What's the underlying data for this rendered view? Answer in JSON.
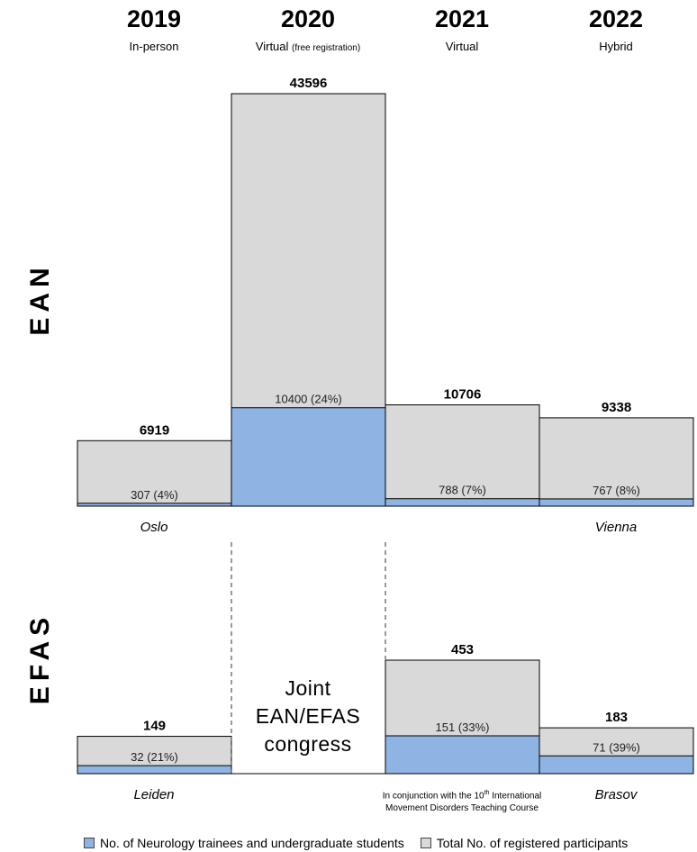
{
  "colors": {
    "total": "#d9d9d9",
    "trainees": "#8eb4e3",
    "border": "#000000"
  },
  "years": [
    {
      "year": "2019",
      "mode": "In-person",
      "mode_note": ""
    },
    {
      "year": "2020",
      "mode": "Virtual",
      "mode_note": "(free registration)"
    },
    {
      "year": "2021",
      "mode": "Virtual",
      "mode_note": ""
    },
    {
      "year": "2022",
      "mode": "Hybrid",
      "mode_note": ""
    }
  ],
  "sections": {
    "ean": "EAN",
    "efas": "EFAS"
  },
  "cities": {
    "ean_2019": "Oslo",
    "ean_2022": "Vienna",
    "efas_2019": "Leiden",
    "efas_2022": "Brasov"
  },
  "joint_label": [
    "Joint",
    "EAN/EFAS",
    "congress"
  ],
  "note_2021": {
    "line1_pre": "In conjunction with the 10",
    "line1_sup": "th",
    "line1_post": " International",
    "line2": "Movement Disorders Teaching Course"
  },
  "legend": {
    "trainees": "No. of Neurology trainees and undergraduate students",
    "total": "Total No. of registered participants"
  },
  "chart_data": [
    {
      "type": "bar",
      "name": "EAN",
      "categories": [
        "2019",
        "2020",
        "2021",
        "2022"
      ],
      "series": [
        {
          "name": "Total No. of registered participants",
          "values": [
            6919,
            43596,
            10706,
            9338
          ]
        },
        {
          "name": "No. of Neurology trainees and undergraduate students",
          "values": [
            307,
            10400,
            788,
            767
          ]
        }
      ],
      "total_labels": [
        "6919",
        "43596",
        "10706",
        "9338"
      ],
      "trainee_labels": [
        "307 (4%)",
        "10400 (24%)",
        "788 (7%)",
        "767 (8%)"
      ]
    },
    {
      "type": "bar",
      "name": "EFAS",
      "categories": [
        "2019",
        "2020",
        "2021",
        "2022"
      ],
      "series": [
        {
          "name": "Total No. of registered participants",
          "values": [
            149,
            null,
            453,
            183
          ]
        },
        {
          "name": "No. of Neurology trainees and undergraduate students",
          "values": [
            32,
            null,
            151,
            71
          ]
        }
      ],
      "total_labels": [
        "149",
        "",
        "453",
        "183"
      ],
      "trainee_labels": [
        "32 (21%)",
        "",
        "151 (33%)",
        "71 (39%)"
      ]
    }
  ]
}
